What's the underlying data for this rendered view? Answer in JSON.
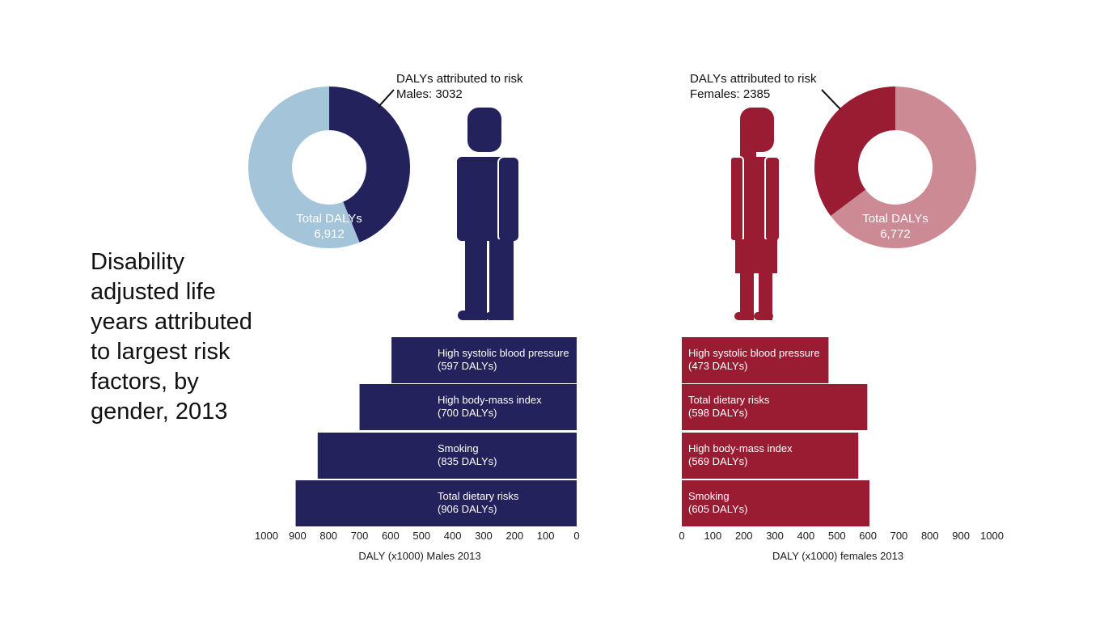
{
  "title": "Disability\nadjusted life\nyears attributed\nto largest risk\nfactors, by\ngender, 2013",
  "colors": {
    "male": "#24225c",
    "male_light": "#a3c4d9",
    "female": "#9a1c32",
    "female_light": "#cc8a95"
  },
  "chart_data": [
    {
      "type": "bar",
      "orientation": "horizontal-reversed",
      "series_group": "males",
      "categories": [
        "High systolic blood pressure",
        "High body-mass index",
        "Smoking",
        "Total dietary risks"
      ],
      "values": [
        597,
        700,
        835,
        906
      ],
      "value_labels": [
        "(597 DALYs)",
        "(700 DALYs)",
        "(835 DALYs)",
        "(906 DALYs)"
      ],
      "xlabel": "DALY (x1000) Males 2013",
      "xlim": [
        1000,
        0
      ],
      "ticks": [
        "1000",
        "900",
        "800",
        "700",
        "600",
        "500",
        "400",
        "300",
        "200",
        "100",
        "0"
      ]
    },
    {
      "type": "bar",
      "orientation": "horizontal",
      "series_group": "females",
      "categories": [
        "High systolic blood pressure",
        "Total dietary risks",
        "High body-mass index",
        "Smoking"
      ],
      "values": [
        473,
        598,
        569,
        605
      ],
      "value_labels": [
        "(473 DALYs)",
        "(598 DALYs)",
        "(569 DALYs)",
        "(605 DALYs)"
      ],
      "xlabel": "DALY (x1000) females 2013",
      "xlim": [
        0,
        1000
      ],
      "ticks": [
        "0",
        "100",
        "200",
        "300",
        "400",
        "500",
        "600",
        "700",
        "800",
        "900",
        "1000"
      ]
    },
    {
      "type": "pie",
      "series_group": "males",
      "total": 6912,
      "attributed": 3032,
      "total_label": [
        "Total DALYs",
        "6,912"
      ],
      "callout": [
        "DALYs attributed to risk",
        "Males: 3032"
      ]
    },
    {
      "type": "pie",
      "series_group": "females",
      "total": 6772,
      "attributed": 2385,
      "total_label": [
        "Total DALYs",
        "6,772"
      ],
      "callout": [
        "DALYs attributed to risk",
        "Females: 2385"
      ]
    }
  ]
}
